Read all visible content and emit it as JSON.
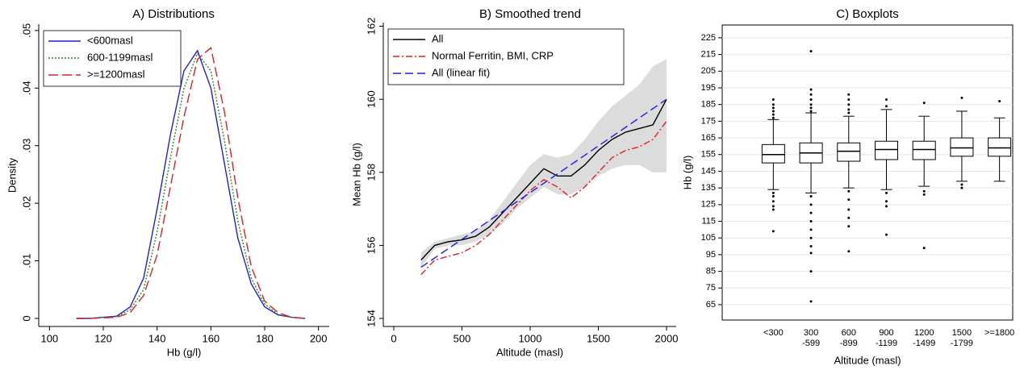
{
  "chart_data": [
    {
      "type": "line",
      "title": "A) Distributions",
      "xlabel": "Hb (g/l)",
      "ylabel": "Density",
      "x": [
        110,
        115,
        120,
        125,
        130,
        135,
        140,
        145,
        150,
        155,
        160,
        165,
        170,
        175,
        180,
        185,
        190,
        195
      ],
      "series": [
        {
          "name": "<600masl",
          "color": "#1f1fe0",
          "dash": "solid",
          "values": [
            0,
            0,
            0.0002,
            0.0004,
            0.002,
            0.007,
            0.019,
            0.032,
            0.043,
            0.0465,
            0.04,
            0.027,
            0.014,
            0.006,
            0.002,
            0.0006,
            0.0002,
            0
          ]
        },
        {
          "name": "600-1199masl",
          "color": "#2a8a2a",
          "dash": "dotted",
          "values": [
            0,
            0,
            0.0002,
            0.0003,
            0.0015,
            0.005,
            0.015,
            0.028,
            0.04,
            0.046,
            0.043,
            0.031,
            0.017,
            0.007,
            0.0025,
            0.0007,
            0.0002,
            0
          ]
        },
        {
          "name": ">=1200masl",
          "color": "#e02020",
          "dash": "longdash",
          "values": [
            0,
            0,
            0.0001,
            0.0002,
            0.001,
            0.004,
            0.011,
            0.023,
            0.035,
            0.045,
            0.047,
            0.036,
            0.021,
            0.009,
            0.003,
            0.001,
            0.0002,
            0
          ]
        }
      ],
      "xlim": [
        96,
        204
      ],
      "xticks": [
        100,
        120,
        140,
        160,
        180,
        200
      ],
      "ylim": [
        -0.0014,
        0.0511
      ],
      "yticks": [
        0,
        {
          "value": 0.01,
          "label": ".01"
        },
        {
          "value": 0.02,
          "label": ".02"
        },
        {
          "value": 0.03,
          "label": ".03"
        },
        {
          "value": 0.04,
          "label": ".04"
        },
        {
          "value": 0.05,
          "label": ".05"
        }
      ],
      "grid": false,
      "legend": "top-left"
    },
    {
      "type": "line",
      "title": "B) Smoothed trend",
      "xlabel": "Altitude (masl)",
      "ylabel": "Mean Hb (g/l)",
      "ci_x": [
        200,
        300,
        400,
        500,
        600,
        700,
        800,
        900,
        1000,
        1100,
        1200,
        1300,
        1400,
        1500,
        1600,
        1700,
        1800,
        1900,
        2000
      ],
      "ci_upper": [
        155.8,
        156.1,
        156.2,
        156.3,
        156.4,
        156.7,
        157.2,
        157.7,
        158.2,
        158.5,
        158.4,
        158.5,
        158.9,
        159.4,
        159.8,
        160.1,
        160.4,
        160.9,
        161.1
      ],
      "ci_lower": [
        155.4,
        155.9,
        156.0,
        156.0,
        156.1,
        156.3,
        156.6,
        157.0,
        157.3,
        157.6,
        157.4,
        157.4,
        157.6,
        157.9,
        158.1,
        158.2,
        158.2,
        158.0,
        158.0
      ],
      "ci_color": "#dcdcdc",
      "series": [
        {
          "name": "All",
          "color": "#000000",
          "dash": "solid",
          "x": [
            200,
            300,
            400,
            500,
            600,
            700,
            800,
            900,
            1000,
            1100,
            1200,
            1300,
            1400,
            1500,
            1600,
            1700,
            1800,
            1900,
            2000
          ],
          "values": [
            155.6,
            156.0,
            156.1,
            156.15,
            156.25,
            156.5,
            156.9,
            157.3,
            157.7,
            158.1,
            157.9,
            157.9,
            158.2,
            158.6,
            158.9,
            159.1,
            159.2,
            159.3,
            160.0
          ]
        },
        {
          "name": "Normal Ferritin, BMI, CRP",
          "color": "#e02020",
          "dash": "dashdot",
          "x": [
            200,
            300,
            400,
            500,
            600,
            700,
            800,
            900,
            1000,
            1100,
            1200,
            1300,
            1400,
            1500,
            1600,
            1700,
            1800,
            1900,
            2000
          ],
          "values": [
            155.2,
            155.6,
            155.7,
            155.8,
            156.0,
            156.3,
            156.7,
            157.1,
            157.5,
            157.8,
            157.6,
            157.3,
            157.6,
            158.0,
            158.4,
            158.6,
            158.7,
            158.9,
            159.4
          ]
        },
        {
          "name": "All (linear fit)",
          "color": "#1f1fe0",
          "dash": "dash",
          "x": [
            200,
            2000
          ],
          "values": [
            155.4,
            160.0
          ]
        }
      ],
      "xlim": [
        -77,
        2071
      ],
      "xticks": [
        0,
        500,
        1000,
        1500,
        2000
      ],
      "ylim": [
        153.78,
        162.1
      ],
      "yticks": [
        154,
        156,
        158,
        160,
        162
      ],
      "grid": false,
      "legend": "top-left"
    },
    {
      "type": "box",
      "title": "C) Boxplots",
      "xlabel": "Altitude (masl)",
      "ylabel": "Hb (g/l)",
      "categories": [
        [
          "<300"
        ],
        [
          "300",
          "-599"
        ],
        [
          "600",
          "-899"
        ],
        [
          "900",
          "-1199"
        ],
        [
          "1200",
          "-1499"
        ],
        [
          "1500",
          "-1799"
        ],
        [
          ">=1800"
        ]
      ],
      "boxes": [
        {
          "low": 134,
          "q1": 150,
          "median": 155,
          "q3": 161,
          "high": 176,
          "outliers": [
            188,
            185,
            183,
            181,
            179,
            177,
            132,
            130,
            127,
            124,
            122,
            109
          ]
        },
        {
          "low": 132,
          "q1": 150,
          "median": 156,
          "q3": 162,
          "high": 180,
          "outliers": [
            217,
            194,
            191,
            188,
            185,
            183,
            181,
            130,
            125,
            120,
            115,
            110,
            105,
            100,
            96,
            85,
            67
          ]
        },
        {
          "low": 135,
          "q1": 151,
          "median": 157,
          "q3": 162,
          "high": 178,
          "outliers": [
            191,
            188,
            185,
            182,
            180,
            133,
            128,
            122,
            117,
            112,
            97
          ]
        },
        {
          "low": 134,
          "q1": 152,
          "median": 158,
          "q3": 163,
          "high": 182,
          "outliers": [
            188,
            184,
            132,
            127,
            124,
            107
          ]
        },
        {
          "low": 136,
          "q1": 152,
          "median": 158,
          "q3": 163,
          "high": 178,
          "outliers": [
            186,
            133,
            131,
            99
          ]
        },
        {
          "low": 139,
          "q1": 154,
          "median": 159,
          "q3": 165,
          "high": 181,
          "outliers": [
            189,
            137,
            135
          ]
        },
        {
          "low": 139,
          "q1": 154,
          "median": 159,
          "q3": 165,
          "high": 177,
          "outliers": [
            187
          ]
        }
      ],
      "color": "#000000",
      "ylim": [
        55.8,
        232.7
      ],
      "yticks": [
        65,
        75,
        85,
        95,
        105,
        115,
        125,
        135,
        145,
        155,
        165,
        175,
        185,
        195,
        205,
        215,
        225
      ],
      "grid": true
    }
  ]
}
